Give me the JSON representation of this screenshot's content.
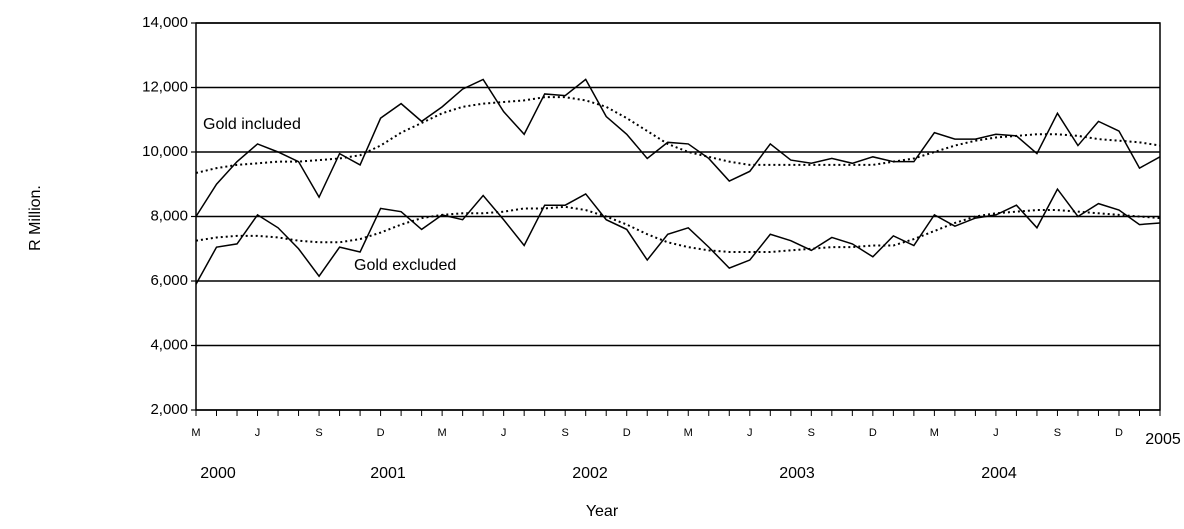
{
  "chart_data": {
    "type": "line",
    "y_label": "R Million.",
    "x_label": "Year",
    "categories": [
      "M",
      null,
      null,
      "J",
      null,
      null,
      "S",
      null,
      null,
      "D",
      null,
      null,
      "M",
      null,
      null,
      "J",
      null,
      null,
      "S",
      null,
      null,
      "D",
      null,
      null,
      "M",
      null,
      null,
      "J",
      null,
      null,
      "S",
      null,
      null,
      "D",
      null,
      null,
      "M",
      null,
      null,
      "J",
      null,
      null,
      "S",
      null,
      null,
      "D",
      null,
      null
    ],
    "year_labels": [
      "2000",
      "2001",
      "2002",
      "2003",
      "2004",
      "2005"
    ],
    "series": [
      {
        "name": "Gold included",
        "color": "#000000",
        "style": "solid",
        "values": [
          8000,
          9000,
          9700,
          10250,
          10000,
          9700,
          8600,
          9950,
          9600,
          11050,
          11500,
          10950,
          11400,
          11950,
          12250,
          11250,
          10550,
          11800,
          11750,
          12250,
          11100,
          10550,
          9800,
          10300,
          10250,
          9800,
          9100,
          9400,
          10250,
          9750,
          9650,
          9800,
          9650,
          9850,
          9700,
          9700,
          10600,
          10400,
          10400,
          10550,
          10500,
          9950,
          11200,
          10200,
          10950,
          10650,
          9500,
          9850
        ]
      },
      {
        "name": "Gold excluded",
        "color": "#000000",
        "style": "solid",
        "values": [
          5900,
          7050,
          7150,
          8050,
          7650,
          7000,
          6150,
          7050,
          6900,
          8250,
          8150,
          7600,
          8050,
          7900,
          8650,
          7900,
          7100,
          8350,
          8350,
          8700,
          7900,
          7600,
          6650,
          7450,
          7650,
          7050,
          6400,
          6650,
          7450,
          7250,
          6950,
          7350,
          7150,
          6750,
          7400,
          7100,
          8050,
          7700,
          7950,
          8050,
          8350,
          7650,
          8850,
          8000,
          8400,
          8200,
          7750,
          7800
        ]
      },
      {
        "color": "#000000",
        "style": "dotted",
        "values": [
          9350,
          9500,
          9600,
          9650,
          9700,
          9700,
          9750,
          9800,
          9900,
          10200,
          10600,
          10900,
          11200,
          11400,
          11500,
          11550,
          11600,
          11700,
          11700,
          11600,
          11400,
          11050,
          10650,
          10250,
          10000,
          9850,
          9700,
          9600,
          9600,
          9600,
          9600,
          9600,
          9600,
          9600,
          9700,
          9800,
          10000,
          10200,
          10350,
          10450,
          10500,
          10550,
          10550,
          10500,
          10400,
          10350,
          10300,
          10200
        ]
      },
      {
        "color": "#000000",
        "style": "dotted",
        "values": [
          7250,
          7350,
          7400,
          7400,
          7350,
          7250,
          7200,
          7200,
          7300,
          7500,
          7750,
          7950,
          8050,
          8100,
          8100,
          8150,
          8250,
          8250,
          8300,
          8200,
          8000,
          7750,
          7450,
          7200,
          7050,
          6950,
          6900,
          6900,
          6900,
          6950,
          7000,
          7050,
          7050,
          7100,
          7100,
          7300,
          7550,
          7800,
          8000,
          8100,
          8150,
          8200,
          8200,
          8150,
          8100,
          8050,
          8000,
          7950
        ]
      }
    ],
    "ylim": [
      2000,
      14000
    ],
    "yticks": [
      {
        "value": 2000,
        "label": "2,000"
      },
      {
        "value": 4000,
        "label": "4,000"
      },
      {
        "value": 6000,
        "label": "6,000"
      },
      {
        "value": 8000,
        "label": "8,000"
      },
      {
        "value": 10000,
        "label": "10,000"
      },
      {
        "value": 12000,
        "label": "12,000"
      },
      {
        "value": 14000,
        "label": "14,000"
      }
    ],
    "grid": true
  }
}
